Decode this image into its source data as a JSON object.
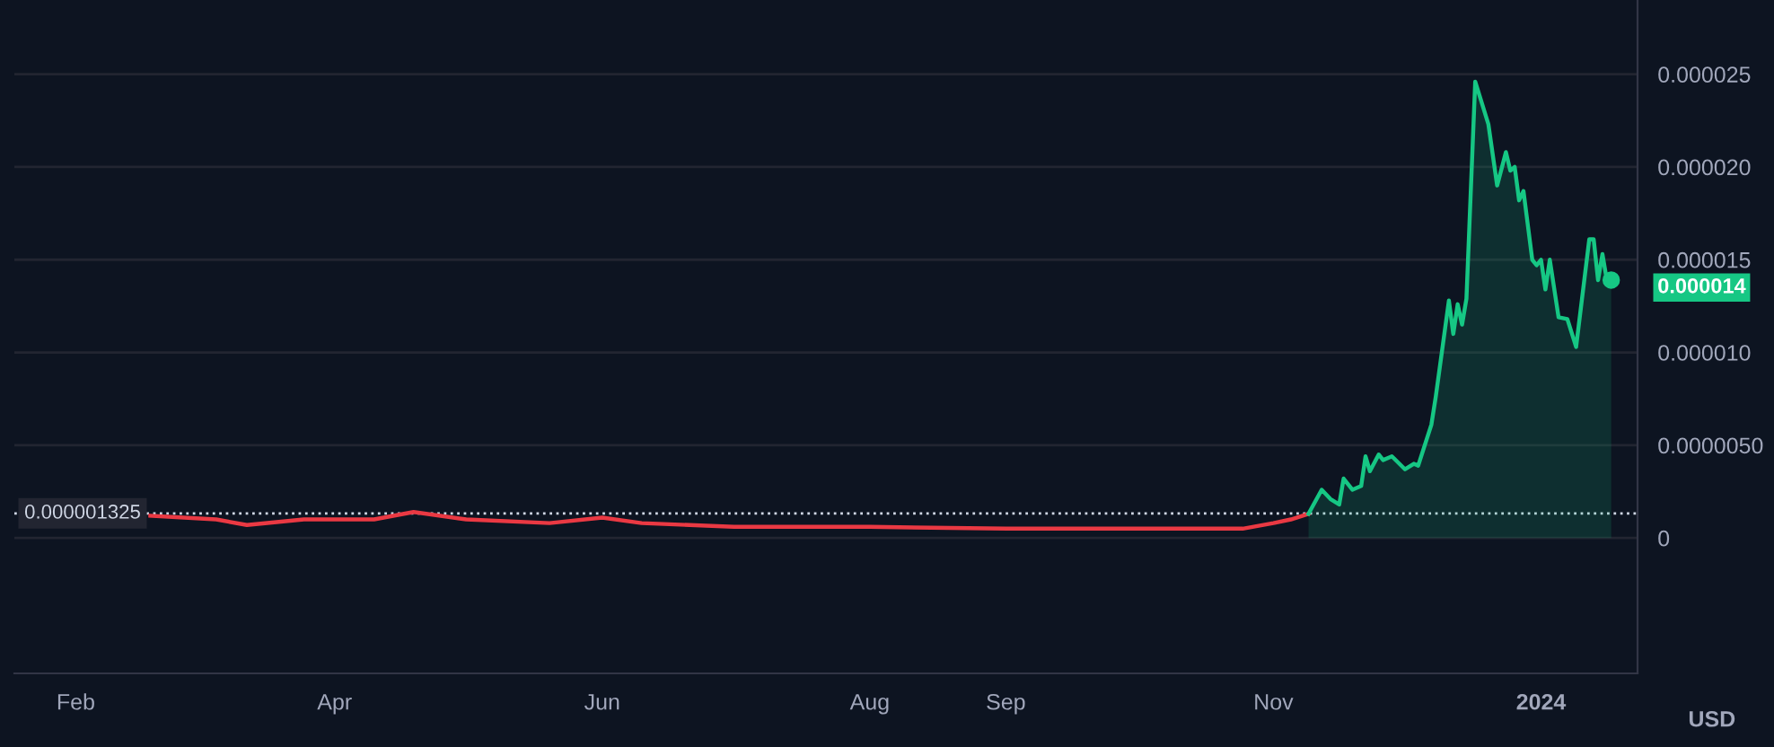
{
  "chart_data": {
    "type": "line",
    "x": [
      "2023-02-18",
      "2023-03-05",
      "2023-03-12",
      "2023-03-25",
      "2023-04-10",
      "2023-04-19",
      "2023-05-01",
      "2023-05-20",
      "2023-06-01",
      "2023-06-10",
      "2023-07-01",
      "2023-08-01",
      "2023-09-01",
      "2023-10-01",
      "2023-10-25",
      "2023-11-01",
      "2023-11-05",
      "2023-11-09"
    ],
    "series": [
      {
        "type": "line",
        "color": "#ea3943",
        "values": [
          1.2e-06,
          1e-06,
          7e-07,
          1e-06,
          1e-06,
          1.4e-06,
          1e-06,
          8e-07,
          1.1e-06,
          8e-07,
          6e-07,
          6e-07,
          5e-07,
          5e-07,
          5e-07,
          8e-07,
          1e-06,
          1.3e-06
        ]
      },
      {
        "type": "area",
        "color": "#16c784",
        "x": [
          "2023-11-09",
          "2023-11-12",
          "2023-11-14",
          "2023-11-16",
          "2023-11-17",
          "2023-11-19",
          "2023-11-21",
          "2023-11-22",
          "2023-11-23",
          "2023-11-25",
          "2023-11-26",
          "2023-11-28",
          "2023-12-01",
          "2023-12-03",
          "2023-12-04",
          "2023-12-07",
          "2023-12-08",
          "2023-12-11",
          "2023-12-12",
          "2023-12-13",
          "2023-12-14",
          "2023-12-15",
          "2023-12-17",
          "2023-12-20",
          "2023-12-22",
          "2023-12-24",
          "2023-12-25",
          "2023-12-26",
          "2023-12-27",
          "2023-12-28",
          "2023-12-30",
          "2023-12-31",
          "2024-01-01",
          "2024-01-02",
          "2024-01-03",
          "2024-01-05",
          "2024-01-07",
          "2024-01-09",
          "2024-01-12",
          "2024-01-13",
          "2024-01-14",
          "2024-01-15",
          "2024-01-16",
          "2024-01-17"
        ],
        "values": [
          1.3e-06,
          2.6e-06,
          2.1e-06,
          1.8e-06,
          3.2e-06,
          2.6e-06,
          2.8e-06,
          4.4e-06,
          3.6e-06,
          4.5e-06,
          4.2e-06,
          4.4e-06,
          3.7e-06,
          4e-06,
          3.9e-06,
          6.1e-06,
          7.6e-06,
          1.28e-05,
          1.1e-05,
          1.26e-05,
          1.15e-05,
          1.29e-05,
          2.46e-05,
          2.23e-05,
          1.9e-05,
          2.08e-05,
          1.98e-05,
          2e-05,
          1.82e-05,
          1.87e-05,
          1.5e-05,
          1.47e-05,
          1.5e-05,
          1.34e-05,
          1.5e-05,
          1.19e-05,
          1.18e-05,
          1.03e-05,
          1.61e-05,
          1.61e-05,
          1.39e-05,
          1.53e-05,
          1.39e-05,
          1.39e-05
        ]
      }
    ],
    "xlim": [
      "2023-01-18",
      "2024-01-23"
    ],
    "xticks": [
      {
        "value": "2023-02-01",
        "label": "Feb"
      },
      {
        "value": "2023-04-01",
        "label": "Apr"
      },
      {
        "value": "2023-06-01",
        "label": "Jun"
      },
      {
        "value": "2023-08-01",
        "label": "Aug"
      },
      {
        "value": "2023-09-01",
        "label": "Sep"
      },
      {
        "value": "2023-11-01",
        "label": "Nov"
      },
      {
        "value": "2024-01-01",
        "label": "2024"
      }
    ],
    "ylim": [
      -7.3e-06,
      2.9e-05
    ],
    "yticks": [
      0,
      {
        "value": 5e-06,
        "label": "0.0000050"
      },
      {
        "value": 1e-05,
        "label": "0.000010"
      },
      {
        "value": 1.5e-05,
        "label": "0.000015"
      },
      {
        "value": 2e-05,
        "label": "0.000020"
      },
      {
        "value": 2.5e-05,
        "label": "0.000025"
      }
    ],
    "ref_lines": [
      {
        "axis": "y",
        "value": 1.325e-06,
        "label": "0.000001325",
        "color": "#cfd6e4",
        "line_style": "dotted"
      }
    ],
    "annotations": [
      {
        "text": "0.000014",
        "x": "2024-01-17",
        "y": 1.39e-05
      },
      "USD"
    ],
    "grid": "y",
    "marker": "none",
    "line_style": "solid",
    "legend": false
  }
}
